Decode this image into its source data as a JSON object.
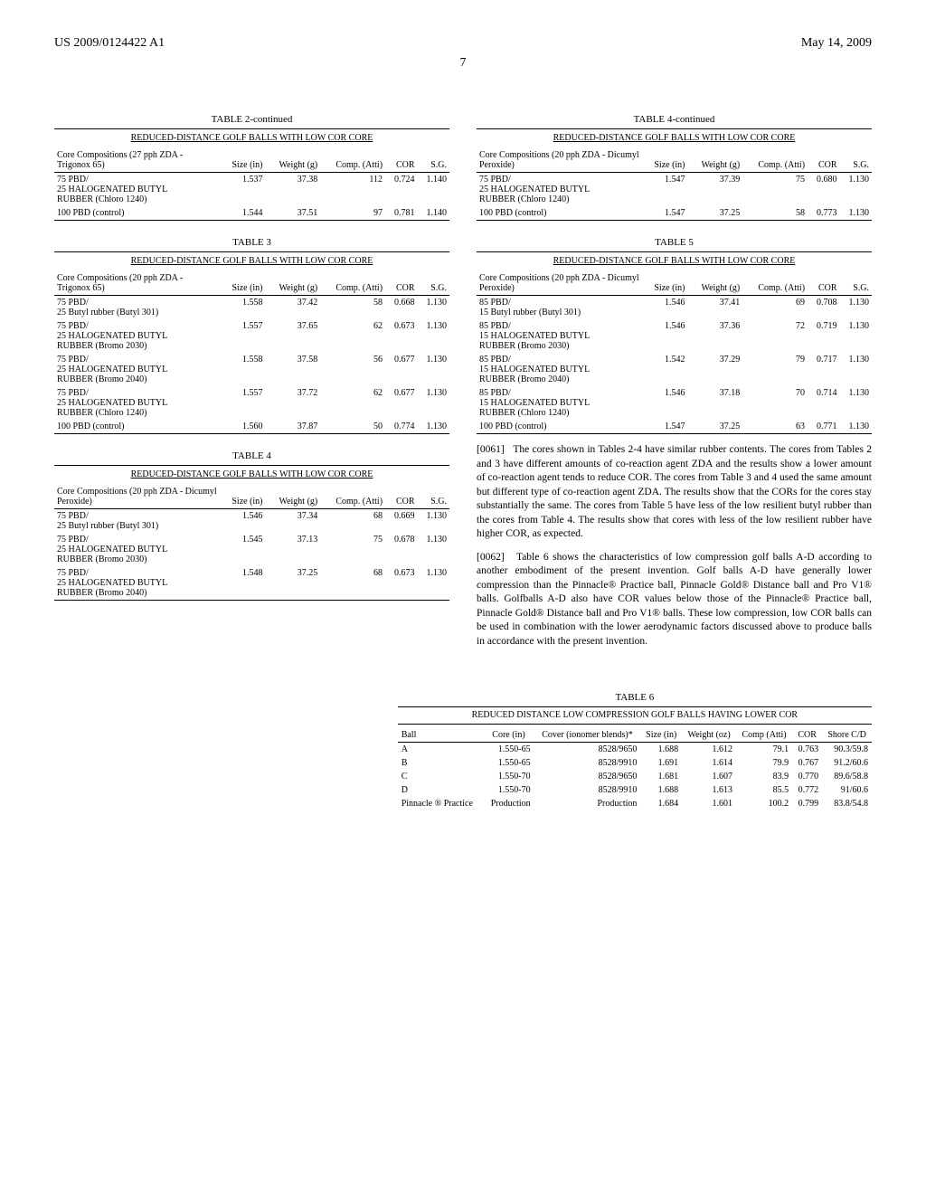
{
  "header": {
    "left": "US 2009/0124422 A1",
    "right": "May 14, 2009",
    "page": "7"
  },
  "common": {
    "subtitle": "REDUCED-DISTANCE GOLF BALLS WITH LOW COR CORE",
    "col_size": "Size (in)",
    "col_weight": "Weight (g)",
    "col_comp": "Comp. (Atti)",
    "col_cor": "COR",
    "col_sg": "S.G."
  },
  "table2": {
    "title": "TABLE 2-continued",
    "comp_header": "Core Compositions (27 pph ZDA - Trigonox 65)",
    "rows": [
      {
        "c": "75 PBD/\n25 HALOGENATED BUTYL\nRUBBER (Chloro 1240)",
        "s": "1.537",
        "w": "37.38",
        "p": "112",
        "r": "0.724",
        "g": "1.140"
      },
      {
        "c": "100 PBD (control)",
        "s": "1.544",
        "w": "37.51",
        "p": "97",
        "r": "0.781",
        "g": "1.140"
      }
    ]
  },
  "table3": {
    "title": "TABLE 3",
    "comp_header": "Core Compositions (20 pph ZDA - Trigonox 65)",
    "rows": [
      {
        "c": "75 PBD/\n25 Butyl rubber (Butyl 301)",
        "s": "1.558",
        "w": "37.42",
        "p": "58",
        "r": "0.668",
        "g": "1.130"
      },
      {
        "c": "75 PBD/\n25 HALOGENATED BUTYL\nRUBBER (Bromo 2030)",
        "s": "1.557",
        "w": "37.65",
        "p": "62",
        "r": "0.673",
        "g": "1.130"
      },
      {
        "c": "75 PBD/\n25 HALOGENATED BUTYL\nRUBBER (Bromo 2040)",
        "s": "1.558",
        "w": "37.58",
        "p": "56",
        "r": "0.677",
        "g": "1.130"
      },
      {
        "c": "75 PBD/\n25 HALOGENATED BUTYL\nRUBBER (Chloro 1240)",
        "s": "1.557",
        "w": "37.72",
        "p": "62",
        "r": "0.677",
        "g": "1.130"
      },
      {
        "c": "100 PBD (control)",
        "s": "1.560",
        "w": "37.87",
        "p": "50",
        "r": "0.774",
        "g": "1.130"
      }
    ]
  },
  "table4l": {
    "title": "TABLE 4",
    "comp_header": "Core Compositions (20 pph ZDA - Dicumyl Peroxide)",
    "rows": [
      {
        "c": "75 PBD/\n25 Butyl rubber (Butyl 301)",
        "s": "1.546",
        "w": "37.34",
        "p": "68",
        "r": "0.669",
        "g": "1.130"
      },
      {
        "c": "75 PBD/\n25 HALOGENATED BUTYL\nRUBBER (Bromo 2030)",
        "s": "1.545",
        "w": "37.13",
        "p": "75",
        "r": "0.678",
        "g": "1.130"
      },
      {
        "c": "75 PBD/\n25 HALOGENATED BUTYL\nRUBBER (Bromo 2040)",
        "s": "1.548",
        "w": "37.25",
        "p": "68",
        "r": "0.673",
        "g": "1.130"
      }
    ]
  },
  "table4r": {
    "title": "TABLE 4-continued",
    "comp_header": "Core Compositions (20 pph ZDA - Dicumyl Peroxide)",
    "rows": [
      {
        "c": "75 PBD/\n25 HALOGENATED BUTYL\nRUBBER (Chloro 1240)",
        "s": "1.547",
        "w": "37.39",
        "p": "75",
        "r": "0.680",
        "g": "1.130"
      },
      {
        "c": "100 PBD (control)",
        "s": "1.547",
        "w": "37.25",
        "p": "58",
        "r": "0.773",
        "g": "1.130"
      }
    ]
  },
  "table5": {
    "title": "TABLE 5",
    "comp_header": "Core Compositions (20 pph ZDA - Dicumyl Peroxide)",
    "rows": [
      {
        "c": "85 PBD/\n15 Butyl rubber (Butyl 301)",
        "s": "1.546",
        "w": "37.41",
        "p": "69",
        "r": "0.708",
        "g": "1.130"
      },
      {
        "c": "85 PBD/\n15 HALOGENATED BUTYL\nRUBBER (Bromo 2030)",
        "s": "1.546",
        "w": "37.36",
        "p": "72",
        "r": "0.719",
        "g": "1.130"
      },
      {
        "c": "85 PBD/\n15 HALOGENATED BUTYL\nRUBBER (Bromo 2040)",
        "s": "1.542",
        "w": "37.29",
        "p": "79",
        "r": "0.717",
        "g": "1.130"
      },
      {
        "c": "85 PBD/\n15 HALOGENATED BUTYL\nRUBBER (Chloro 1240)",
        "s": "1.546",
        "w": "37.18",
        "p": "70",
        "r": "0.714",
        "g": "1.130"
      },
      {
        "c": "100 PBD (control)",
        "s": "1.547",
        "w": "37.25",
        "p": "63",
        "r": "0.771",
        "g": "1.130"
      }
    ]
  },
  "paragraphs": {
    "p1_num": "[0061]",
    "p1": "The cores shown in Tables 2-4 have similar rubber contents. The cores from Tables 2 and 3 have different amounts of co-reaction agent ZDA and the results show a lower amount of co-reaction agent tends to reduce COR. The cores from Table 3 and 4 used the same amount but different type of co-reaction agent ZDA. The results show that the CORs for the cores stay substantially the same. The cores from Table 5 have less of the low resilient butyl rubber than the cores from Table 4. The results show that cores with less of the low resilient rubber have higher COR, as expected.",
    "p2_num": "[0062]",
    "p2": "Table 6 shows the characteristics of low compression golf balls A-D according to another embodiment of the present invention. Golf balls A-D have generally lower compression than the Pinnacle® Practice ball, Pinnacle Gold® Distance ball and Pro V1® balls. Golfballs A-D also have COR values below those of the Pinnacle® Practice ball, Pinnacle Gold® Distance ball and Pro V1® balls. These low compression, low COR balls can be used in combination with the lower aerodynamic factors discussed above to produce balls in accordance with the present invention."
  },
  "table6": {
    "title": "TABLE 6",
    "subtitle": "REDUCED DISTANCE LOW COMPRESSION GOLF BALLS HAVING LOWER COR",
    "cols": {
      "ball": "Ball",
      "core": "Core (in)",
      "cover": "Cover (ionomer blends)*",
      "size": "Size (in)",
      "weight": "Weight (oz)",
      "comp": "Comp (Atti)",
      "cor": "COR",
      "shore": "Shore C/D"
    },
    "rows": [
      {
        "b": "A",
        "core": "1.550-65",
        "cov": "8528/9650",
        "s": "1.688",
        "w": "1.612",
        "p": "79.1",
        "r": "0.763",
        "sh": "90.3/59.8"
      },
      {
        "b": "B",
        "core": "1.550-65",
        "cov": "8528/9910",
        "s": "1.691",
        "w": "1.614",
        "p": "79.9",
        "r": "0.767",
        "sh": "91.2/60.6"
      },
      {
        "b": "C",
        "core": "1.550-70",
        "cov": "8528/9650",
        "s": "1.681",
        "w": "1.607",
        "p": "83.9",
        "r": "0.770",
        "sh": "89.6/58.8"
      },
      {
        "b": "D",
        "core": "1.550-70",
        "cov": "8528/9910",
        "s": "1.688",
        "w": "1.613",
        "p": "85.5",
        "r": "0.772",
        "sh": "91/60.6"
      },
      {
        "b": "Pinnacle ® Practice",
        "core": "Production",
        "cov": "Production",
        "s": "1.684",
        "w": "1.601",
        "p": "100.2",
        "r": "0.799",
        "sh": "83.8/54.8"
      }
    ]
  }
}
